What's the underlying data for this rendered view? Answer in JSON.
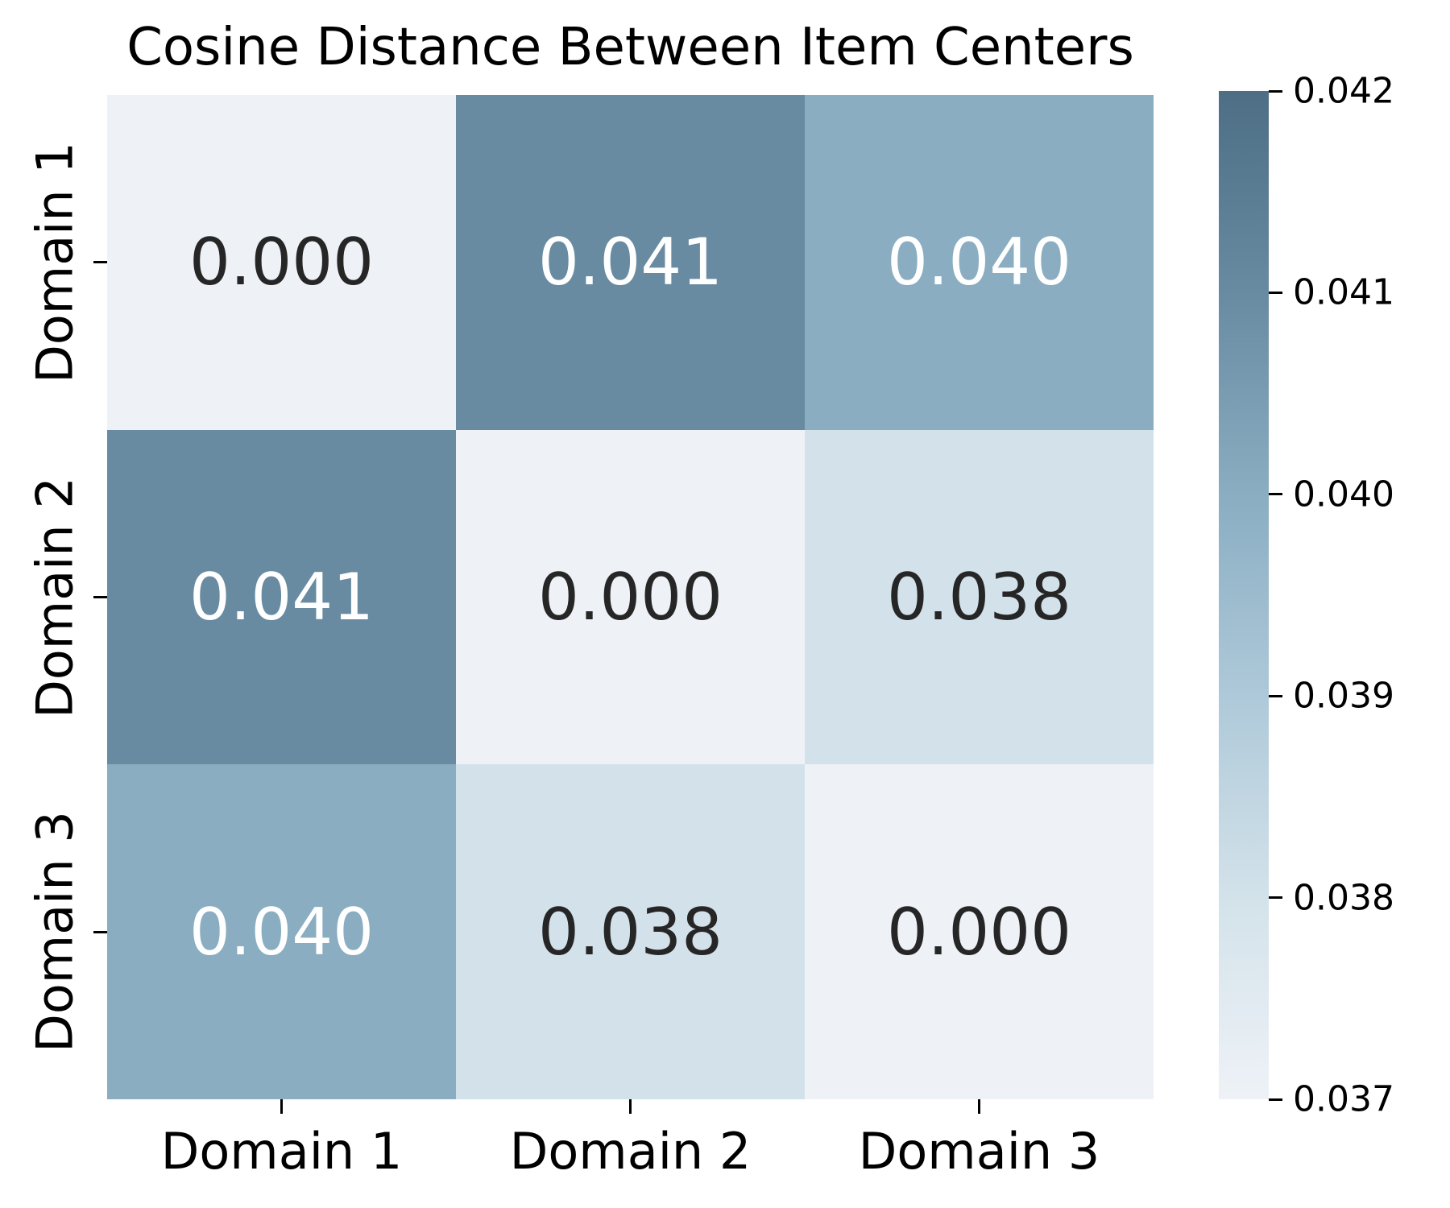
{
  "chart_data": {
    "type": "heatmap",
    "title": "Cosine Distance Between Item Centers",
    "row_labels": [
      "Domain 1",
      "Domain 2",
      "Domain 3"
    ],
    "col_labels": [
      "Domain 1",
      "Domain 2",
      "Domain 3"
    ],
    "values": [
      [
        0.0,
        0.041,
        0.04
      ],
      [
        0.041,
        0.0,
        0.038
      ],
      [
        0.04,
        0.038,
        0.0
      ]
    ],
    "cell_labels": [
      [
        "0.000",
        "0.041",
        "0.040"
      ],
      [
        "0.041",
        "0.000",
        "0.038"
      ],
      [
        "0.040",
        "0.038",
        "0.000"
      ]
    ],
    "cell_colors": [
      [
        "#eef2f7",
        "#688ba1",
        "#8aadc2"
      ],
      [
        "#688ba1",
        "#eef2f7",
        "#d3e2ea"
      ],
      [
        "#8aadc2",
        "#d3e2ea",
        "#eef2f7"
      ]
    ],
    "cell_text_colors": [
      [
        "#262626",
        "#ffffff",
        "#ffffff"
      ],
      [
        "#ffffff",
        "#262626",
        "#262626"
      ],
      [
        "#ffffff",
        "#262626",
        "#262626"
      ]
    ],
    "colorbar": {
      "vmin": 0.037,
      "vmax": 0.042,
      "tick_labels": [
        "0.042",
        "0.041",
        "0.040",
        "0.039",
        "0.038",
        "0.037"
      ],
      "gradient_stops_top_to_bottom": [
        "#4d6e84",
        "#688ba1",
        "#8aadc2",
        "#aec9d9",
        "#d3e2ea",
        "#eef2f7"
      ]
    },
    "layout": {
      "grid_visible": false,
      "colorbar_position": "right",
      "background_color": "#ffffff",
      "annotation_dark_color": "#262626",
      "annotation_light_color": "#ffffff"
    }
  }
}
